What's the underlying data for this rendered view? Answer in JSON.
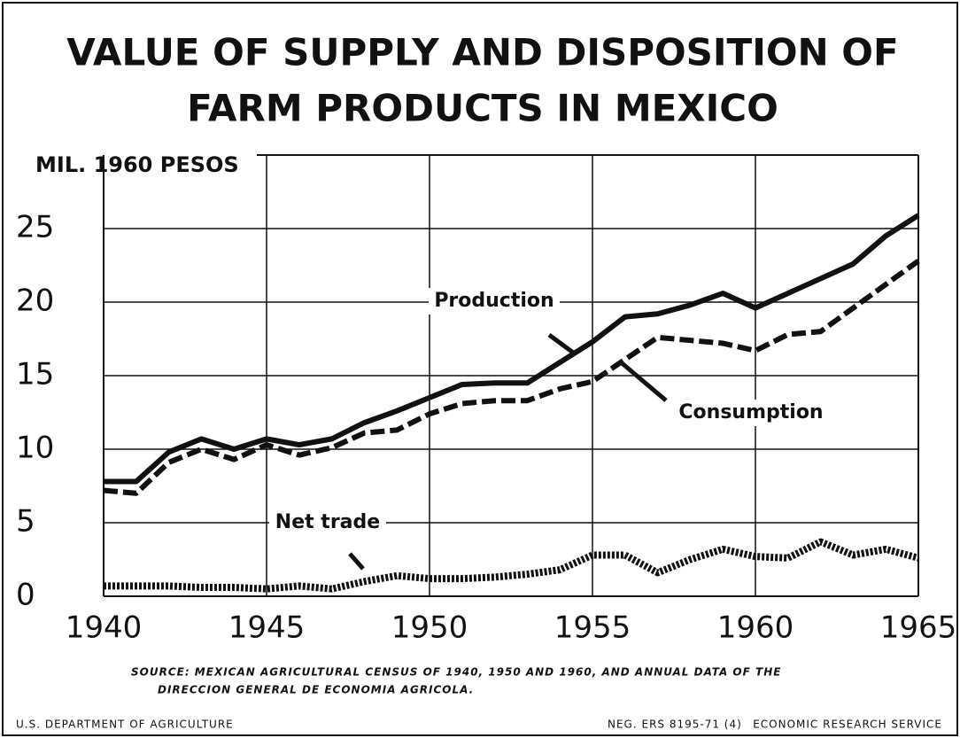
{
  "chart_data": {
    "type": "line",
    "title_lines": [
      "VALUE OF SUPPLY AND DISPOSITION OF",
      "FARM PRODUCTS IN MEXICO"
    ],
    "ylabel": "MIL. 1960 PESOS",
    "x": [
      1940,
      1941,
      1942,
      1943,
      1944,
      1945,
      1946,
      1947,
      1948,
      1949,
      1950,
      1951,
      1952,
      1953,
      1954,
      1955,
      1956,
      1957,
      1958,
      1959,
      1960,
      1961,
      1962,
      1963,
      1964,
      1965
    ],
    "series": [
      {
        "name": "Production",
        "color": "#111111",
        "style": "solid",
        "values": [
          7.8,
          7.8,
          9.8,
          10.7,
          10.0,
          10.7,
          10.3,
          10.7,
          11.8,
          12.6,
          13.5,
          14.4,
          14.5,
          14.5,
          15.9,
          17.3,
          19.0,
          19.2,
          19.8,
          20.6,
          19.6,
          20.6,
          21.6,
          22.6,
          24.5,
          25.9
        ]
      },
      {
        "name": "Consumption",
        "color": "#111111",
        "style": "dashed",
        "values": [
          7.2,
          7.0,
          9.1,
          10.0,
          9.3,
          10.3,
          9.6,
          10.1,
          11.1,
          11.3,
          12.4,
          13.1,
          13.3,
          13.3,
          14.1,
          14.6,
          16.1,
          17.6,
          17.4,
          17.2,
          16.7,
          17.8,
          18.0,
          19.6,
          21.2,
          22.8
        ]
      },
      {
        "name": "Net trade",
        "color": "#111111",
        "style": "dotted",
        "values": [
          0.7,
          0.7,
          0.7,
          0.6,
          0.6,
          0.5,
          0.7,
          0.5,
          1.0,
          1.4,
          1.2,
          1.2,
          1.3,
          1.5,
          1.8,
          2.8,
          2.8,
          1.6,
          2.5,
          3.2,
          2.7,
          2.6,
          3.7,
          2.8,
          3.2,
          2.6
        ]
      }
    ],
    "xlim": [
      1940,
      1965
    ],
    "xticks": [
      1940,
      1945,
      1950,
      1955,
      1960,
      1965
    ],
    "ylim": [
      0,
      30
    ],
    "yticks": [
      0,
      5,
      10,
      15,
      20,
      25
    ],
    "grid": true,
    "source_lines": [
      "SOURCE: MEXICAN AGRICULTURAL CENSUS OF 1940, 1950 AND 1960, AND ANNUAL DATA OF THE",
      "DIRECCION GENERAL DE ECONOMIA AGRICOLA."
    ],
    "footer_left": "U.S. DEPARTMENT OF AGRICULTURE",
    "footer_neg": "NEG. ERS 8195-71 (4)",
    "footer_right": "ECONOMIC RESEARCH SERVICE"
  }
}
